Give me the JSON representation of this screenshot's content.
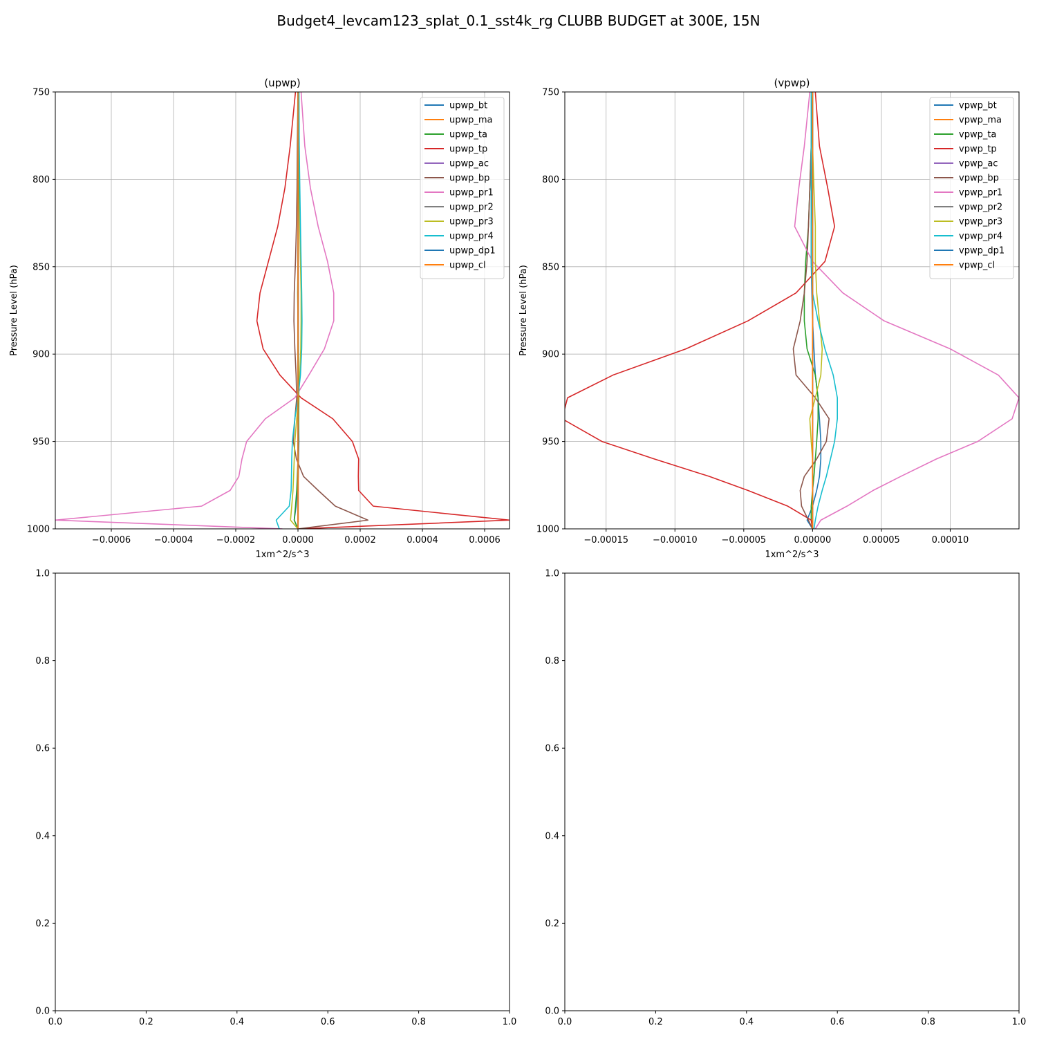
{
  "figure": {
    "suptitle": "Budget4_levcam123_splat_0.1_sst4k_rg CLUBB BUDGET at 300E, 15N"
  },
  "colors": [
    "#1f77b4",
    "#ff7f0e",
    "#2ca02c",
    "#d62728",
    "#9467bd",
    "#8c564b",
    "#e377c2",
    "#7f7f7f",
    "#bcbd22",
    "#17becf",
    "#1f77b4",
    "#ff7f0e"
  ],
  "chart_data": [
    {
      "type": "line",
      "title": "(upwp)",
      "xlabel": "1xm^2/s^3",
      "ylabel": "Pressure Level (hPa)",
      "xlim": [
        -0.00078,
        0.00068
      ],
      "ylim": [
        1000,
        750
      ],
      "grid": true,
      "legend": "top-right",
      "xticks": [
        -0.0006,
        -0.0004,
        -0.0002,
        0.0,
        0.0002,
        0.0004,
        0.0006
      ],
      "xtick_labels": [
        "−0.0006",
        "−0.0004",
        "−0.0002",
        "0.0000",
        "0.0002",
        "0.0004",
        "0.0006"
      ],
      "yticks": [
        750,
        800,
        850,
        900,
        950,
        1000
      ],
      "ytick_labels": [
        "750",
        "800",
        "850",
        "900",
        "950",
        "1000"
      ],
      "levels": [
        750,
        781,
        805,
        827,
        847,
        865,
        881,
        897,
        912,
        925,
        937,
        950,
        960,
        970,
        978,
        987,
        995,
        1000
      ],
      "series": [
        {
          "name": "upwp_bt",
          "values": [
            2e-06,
            2e-06,
            2e-06,
            1e-06,
            1e-06,
            1e-06,
            1e-06,
            1e-06,
            1e-06,
            1e-06,
            2e-06,
            3e-06,
            2e-06,
            1e-06,
            -2e-06,
            -6e-06,
            -1.2e-05,
            0.0
          ]
        },
        {
          "name": "upwp_ma",
          "values": [
            1e-06,
            1e-06,
            1e-06,
            1e-06,
            1e-06,
            1e-06,
            1e-06,
            1e-06,
            1e-06,
            1e-06,
            1e-06,
            1e-06,
            1e-06,
            1e-06,
            1e-06,
            1e-06,
            1e-06,
            0.0
          ]
        },
        {
          "name": "upwp_ta",
          "values": [
            2e-06,
            2e-06,
            2e-06,
            1e-06,
            0.0,
            -1e-06,
            0.0,
            1e-06,
            2e-06,
            3e-06,
            2e-06,
            1e-06,
            0.0,
            -2e-06,
            -4e-06,
            -8e-06,
            -1.2e-05,
            0.0
          ]
        },
        {
          "name": "upwp_tp",
          "values": [
            -8e-06,
            -2.5e-05,
            -4.2e-05,
            -6.5e-05,
            -9.5e-05,
            -0.000122,
            -0.000132,
            -0.000112,
            -5.8e-05,
            1e-05,
            0.000112,
            0.000175,
            0.000195,
            0.000194,
            0.000195,
            0.000242,
            0.00068,
            0.0
          ]
        },
        {
          "name": "upwp_ac",
          "values": [
            0.0,
            0.0,
            0.0,
            0.0,
            0.0,
            0.0,
            0.0,
            0.0,
            0.0,
            0.0,
            0.0,
            0.0,
            0.0,
            0.0,
            0.0,
            0.0,
            0.0,
            0.0
          ]
        },
        {
          "name": "upwp_bp",
          "values": [
            0.0,
            -2e-06,
            -3e-06,
            -5e-06,
            -8e-06,
            -1.2e-05,
            -1.3e-05,
            -1e-05,
            -6e-06,
            -4e-06,
            -1e-05,
            -1.5e-05,
            -5e-06,
            1.8e-05,
            6.5e-05,
            0.00012,
            0.000225,
            0.0
          ]
        },
        {
          "name": "upwp_pr1",
          "values": [
            1e-05,
            2.2e-05,
            4e-05,
            6.5e-05,
            9.5e-05,
            0.000115,
            0.000115,
            8.5e-05,
            3.5e-05,
            -1e-05,
            -0.000105,
            -0.000165,
            -0.00018,
            -0.00019,
            -0.000218,
            -0.00031,
            -0.00078,
            -5e-05
          ]
        },
        {
          "name": "upwp_pr2",
          "values": [
            0.0,
            0.0,
            0.0,
            0.0,
            0.0,
            0.0,
            0.0,
            0.0,
            0.0,
            0.0,
            0.0,
            0.0,
            0.0,
            0.0,
            0.0,
            0.0,
            0.0,
            0.0
          ]
        },
        {
          "name": "upwp_pr3",
          "values": [
            3e-06,
            4e-06,
            5e-06,
            6e-06,
            8e-06,
            1e-05,
            1e-05,
            9e-06,
            6e-06,
            2e-06,
            -4e-06,
            -1e-05,
            -1.2e-05,
            -1.4e-05,
            -1.6e-05,
            -2e-05,
            -2.4e-05,
            0.0
          ]
        },
        {
          "name": "upwp_pr4",
          "values": [
            3e-06,
            4e-06,
            6e-06,
            8e-06,
            1e-05,
            1.2e-05,
            1.3e-05,
            1.2e-05,
            8e-06,
            0.0,
            -1e-05,
            -1.8e-05,
            -2e-05,
            -2.1e-05,
            -2.2e-05,
            -2.8e-05,
            -7e-05,
            -6e-05
          ]
        },
        {
          "name": "upwp_dp1",
          "values": [
            0.0,
            0.0,
            0.0,
            0.0,
            0.0,
            0.0,
            0.0,
            0.0,
            0.0,
            0.0,
            0.0,
            0.0,
            0.0,
            0.0,
            0.0,
            0.0,
            0.0,
            0.0
          ]
        },
        {
          "name": "upwp_cl",
          "values": [
            0.0,
            0.0,
            0.0,
            0.0,
            0.0,
            0.0,
            0.0,
            0.0,
            0.0,
            0.0,
            0.0,
            0.0,
            0.0,
            0.0,
            0.0,
            0.0,
            0.0,
            0.0
          ]
        }
      ]
    },
    {
      "type": "line",
      "title": "(vpwp)",
      "xlabel": "1xm^2/s^3",
      "ylabel": "Pressure Level (hPa)",
      "xlim": [
        -0.00018,
        0.00015
      ],
      "ylim": [
        1000,
        750
      ],
      "grid": true,
      "legend": "top-right",
      "xticks": [
        -0.00015,
        -0.0001,
        -5e-05,
        0.0,
        5e-05,
        0.0001
      ],
      "xtick_labels": [
        "−0.00015",
        "−0.00010",
        "−0.00005",
        "0.00000",
        "0.00005",
        "0.00010"
      ],
      "yticks": [
        750,
        800,
        850,
        900,
        950,
        1000
      ],
      "ytick_labels": [
        "750",
        "800",
        "850",
        "900",
        "950",
        "1000"
      ],
      "levels": [
        750,
        781,
        805,
        827,
        847,
        865,
        881,
        897,
        912,
        925,
        937,
        950,
        960,
        970,
        978,
        987,
        995,
        1000
      ],
      "series": [
        {
          "name": "vpwp_bt",
          "values": [
            0.0,
            0.0,
            -5e-07,
            -1e-06,
            -1e-06,
            -5e-07,
            0.0,
            1e-06,
            2e-06,
            4e-06,
            5e-06,
            6e-06,
            6e-06,
            5e-06,
            3e-06,
            0.0,
            -4e-06,
            0.0
          ]
        },
        {
          "name": "vpwp_ma",
          "values": [
            0.0,
            0.0,
            0.0,
            0.0,
            0.0,
            0.0,
            0.0,
            0.0,
            0.0,
            0.0,
            0.0,
            0.0,
            0.0,
            0.0,
            0.0,
            0.0,
            0.0,
            0.0
          ]
        },
        {
          "name": "vpwp_ta",
          "values": [
            0.0,
            -1e-06,
            -2e-06,
            -3e-06,
            -5e-06,
            -6e-06,
            -6e-06,
            -4e-06,
            2e-06,
            4e-06,
            4e-06,
            3e-06,
            2e-06,
            1e-06,
            0.0,
            -1e-06,
            -1e-06,
            0.0
          ]
        },
        {
          "name": "vpwp_tp",
          "values": [
            2e-06,
            5e-06,
            1.1e-05,
            1.6e-05,
            9e-06,
            -1.2e-05,
            -4.7e-05,
            -9.2e-05,
            -0.000145,
            -0.000178,
            -0.000182,
            -0.000153,
            -0.000115,
            -7.5e-05,
            -4.7e-05,
            -1.8e-05,
            -1e-06,
            0.0
          ]
        },
        {
          "name": "vpwp_ac",
          "values": [
            0.0,
            0.0,
            0.0,
            0.0,
            0.0,
            0.0,
            0.0,
            0.0,
            0.0,
            0.0,
            0.0,
            0.0,
            0.0,
            0.0,
            0.0,
            0.0,
            0.0,
            0.0
          ]
        },
        {
          "name": "vpwp_bp",
          "values": [
            0.0,
            -1e-06,
            -2e-06,
            -3e-06,
            -4e-06,
            -6e-06,
            -9e-06,
            -1.4e-05,
            -1.2e-05,
            2e-06,
            1.2e-05,
            1e-05,
            3e-06,
            -6e-06,
            -9e-06,
            -8e-06,
            -3e-06,
            0.0
          ]
        },
        {
          "name": "vpwp_pr1",
          "values": [
            -2e-06,
            -6e-06,
            -1e-05,
            -1.3e-05,
            0.0,
            2.2e-05,
            5.2e-05,
            0.0001,
            0.000135,
            0.00015,
            0.000145,
            0.00012,
            9e-05,
            6.4e-05,
            4.4e-05,
            2.5e-05,
            6e-06,
            2e-06
          ]
        },
        {
          "name": "vpwp_pr2",
          "values": [
            0.0,
            0.0,
            0.0,
            0.0,
            0.0,
            0.0,
            0.0,
            0.0,
            0.0,
            0.0,
            0.0,
            0.0,
            0.0,
            0.0,
            0.0,
            0.0,
            0.0,
            0.0
          ]
        },
        {
          "name": "vpwp_pr3",
          "values": [
            0.0,
            0.0,
            1e-06,
            2e-06,
            2e-06,
            3e-06,
            5e-06,
            7e-06,
            6e-06,
            2e-06,
            -2e-06,
            -1e-06,
            0.0,
            0.0,
            0.0,
            0.0,
            0.0,
            0.0
          ]
        },
        {
          "name": "vpwp_pr4",
          "values": [
            -1e-06,
            -1e-06,
            -1e-06,
            -1e-06,
            -1e-06,
            0.0,
            4e-06,
            9e-06,
            1.5e-05,
            1.8e-05,
            1.8e-05,
            1.6e-05,
            1.3e-05,
            1e-05,
            7e-06,
            4e-06,
            2e-06,
            1e-06
          ]
        },
        {
          "name": "vpwp_dp1",
          "values": [
            0.0,
            0.0,
            0.0,
            0.0,
            0.0,
            0.0,
            0.0,
            0.0,
            0.0,
            0.0,
            0.0,
            0.0,
            0.0,
            0.0,
            0.0,
            0.0,
            0.0,
            0.0
          ]
        },
        {
          "name": "vpwp_cl",
          "values": [
            0.0,
            0.0,
            0.0,
            0.0,
            0.0,
            0.0,
            0.0,
            0.0,
            0.0,
            0.0,
            0.0,
            0.0,
            0.0,
            0.0,
            0.0,
            0.0,
            0.0,
            0.0
          ]
        }
      ]
    },
    {
      "type": "line",
      "title": "",
      "xlim": [
        0,
        1
      ],
      "ylim": [
        0,
        1
      ],
      "xticks": [
        0.0,
        0.2,
        0.4,
        0.6,
        0.8,
        1.0
      ],
      "xtick_labels": [
        "0.0",
        "0.2",
        "0.4",
        "0.6",
        "0.8",
        "1.0"
      ],
      "yticks": [
        0.0,
        0.2,
        0.4,
        0.6,
        0.8,
        1.0
      ],
      "ytick_labels": [
        "0.0",
        "0.2",
        "0.4",
        "0.6",
        "0.8",
        "1.0"
      ],
      "grid": false,
      "series": []
    },
    {
      "type": "line",
      "title": "",
      "xlim": [
        0,
        1
      ],
      "ylim": [
        0,
        1
      ],
      "xticks": [
        0.0,
        0.2,
        0.4,
        0.6,
        0.8,
        1.0
      ],
      "xtick_labels": [
        "0.0",
        "0.2",
        "0.4",
        "0.6",
        "0.8",
        "1.0"
      ],
      "yticks": [
        0.0,
        0.2,
        0.4,
        0.6,
        0.8,
        1.0
      ],
      "ytick_labels": [
        "0.0",
        "0.2",
        "0.4",
        "0.6",
        "0.8",
        "1.0"
      ],
      "grid": false,
      "series": []
    }
  ]
}
